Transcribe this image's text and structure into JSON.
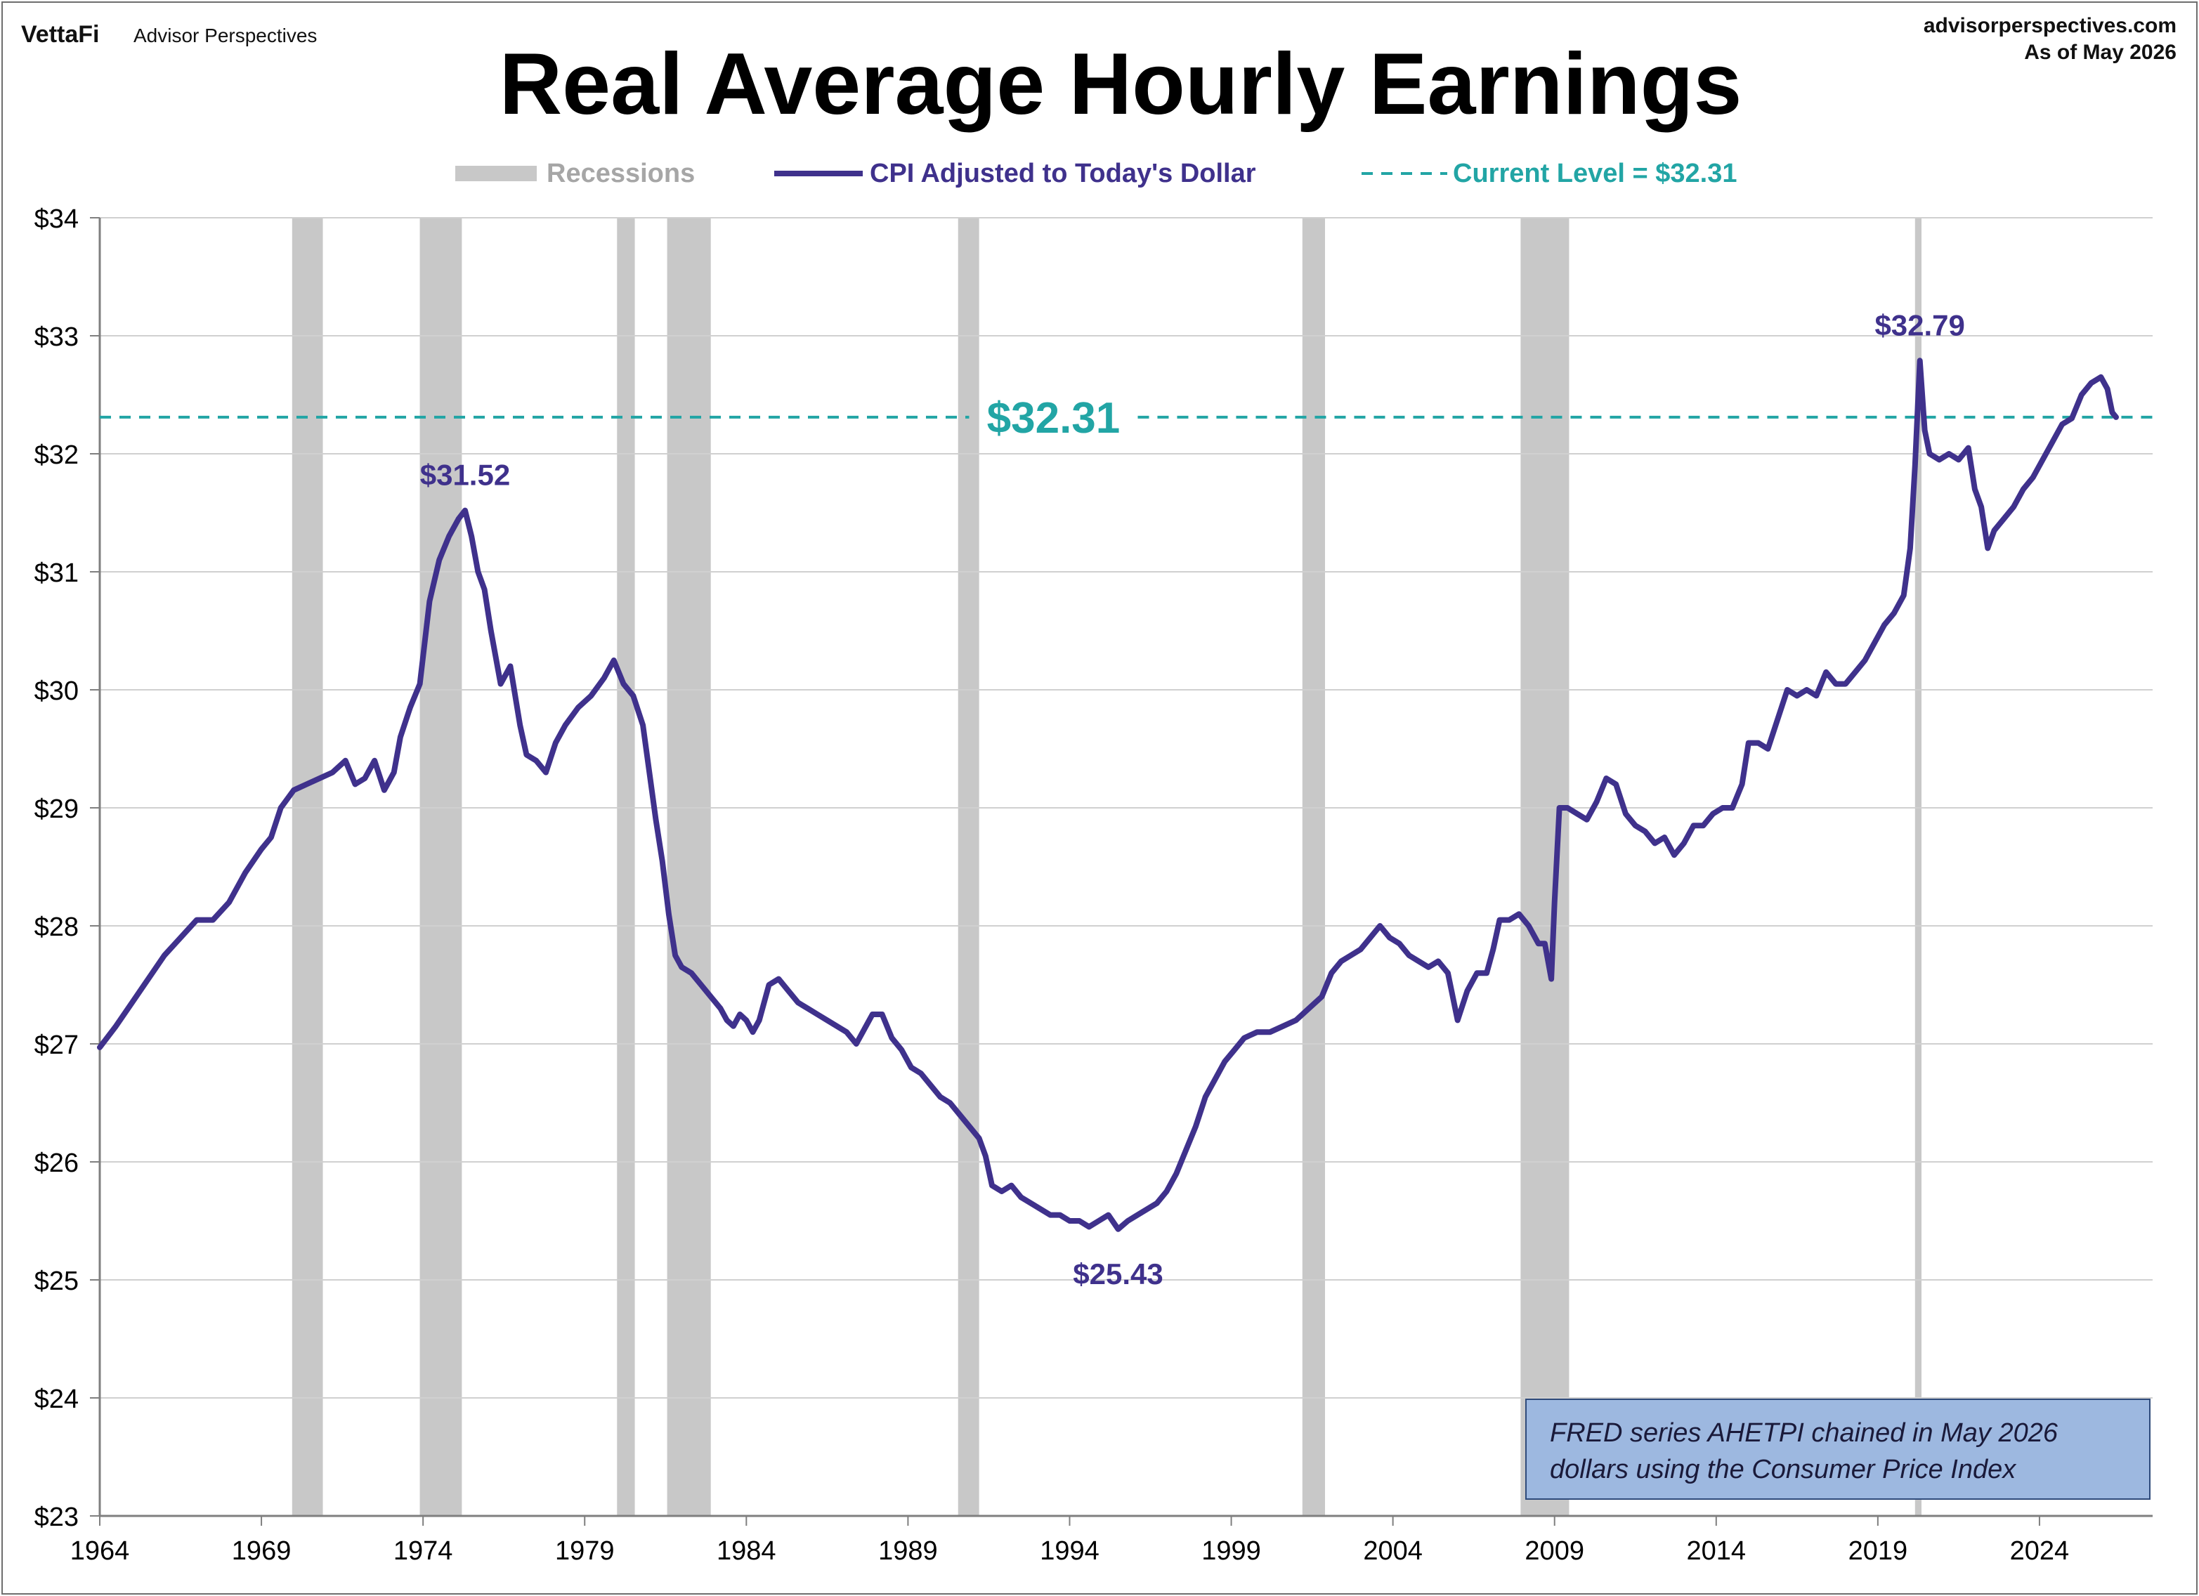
{
  "branding": {
    "logo_text": "VettaFi",
    "publisher": "Advisor Perspectives",
    "website": "advisorperspectives.com",
    "as_of": "As of May 2026"
  },
  "colors": {
    "line": "#3f318c",
    "current_level": "#22a5a5",
    "recession": "#c8c8c8",
    "grid": "#d0d0d0",
    "axis": "#7f7f7f",
    "note_fill": "#9db8e0",
    "note_border": "#2e4a7a"
  },
  "chart_data": {
    "type": "line",
    "title": "Real Average Hourly Earnings",
    "legend": [
      "Recessions",
      "CPI Adjusted to Today's Dollar",
      "Current Level = $32.31"
    ],
    "legend_position": "top",
    "grid": true,
    "x_range": [
      1964,
      2027.5
    ],
    "ylim": [
      23,
      34
    ],
    "xticks": [
      "1964",
      "1969",
      "1974",
      "1979",
      "1984",
      "1989",
      "1994",
      "1999",
      "2004",
      "2009",
      "2014",
      "2019",
      "2024"
    ],
    "yticks": [
      "$23",
      "$24",
      "$25",
      "$26",
      "$27",
      "$28",
      "$29",
      "$30",
      "$31",
      "$32",
      "$33",
      "$34"
    ],
    "recessions": [
      [
        1969.95,
        1970.9
      ],
      [
        1973.9,
        1975.2
      ],
      [
        1980.0,
        1980.55
      ],
      [
        1981.55,
        1982.9
      ],
      [
        1990.55,
        1991.2
      ],
      [
        2001.2,
        2001.9
      ],
      [
        2007.95,
        2009.45
      ],
      [
        2020.15,
        2020.35
      ]
    ],
    "current_level": {
      "value": 32.31,
      "label": "$32.31"
    },
    "series": [
      {
        "name": "CPI Adjusted to Today's Dollar",
        "points": [
          [
            1964.0,
            26.97
          ],
          [
            1964.5,
            27.15
          ],
          [
            1965.0,
            27.35
          ],
          [
            1965.5,
            27.55
          ],
          [
            1966.0,
            27.75
          ],
          [
            1966.5,
            27.9
          ],
          [
            1967.0,
            28.05
          ],
          [
            1967.5,
            28.05
          ],
          [
            1968.0,
            28.2
          ],
          [
            1968.5,
            28.45
          ],
          [
            1969.0,
            28.65
          ],
          [
            1969.3,
            28.75
          ],
          [
            1969.6,
            29.0
          ],
          [
            1970.0,
            29.15
          ],
          [
            1970.4,
            29.2
          ],
          [
            1970.8,
            29.25
          ],
          [
            1971.2,
            29.3
          ],
          [
            1971.6,
            29.4
          ],
          [
            1971.9,
            29.2
          ],
          [
            1972.2,
            29.25
          ],
          [
            1972.5,
            29.4
          ],
          [
            1972.8,
            29.15
          ],
          [
            1973.1,
            29.3
          ],
          [
            1973.3,
            29.6
          ],
          [
            1973.6,
            29.85
          ],
          [
            1973.9,
            30.05
          ],
          [
            1974.2,
            30.75
          ],
          [
            1974.5,
            31.1
          ],
          [
            1974.8,
            31.3
          ],
          [
            1975.1,
            31.45
          ],
          [
            1975.3,
            31.52
          ],
          [
            1975.5,
            31.3
          ],
          [
            1975.7,
            31.0
          ],
          [
            1975.9,
            30.85
          ],
          [
            1976.1,
            30.5
          ],
          [
            1976.4,
            30.05
          ],
          [
            1976.7,
            30.2
          ],
          [
            1977.0,
            29.7
          ],
          [
            1977.2,
            29.45
          ],
          [
            1977.5,
            29.4
          ],
          [
            1977.8,
            29.3
          ],
          [
            1978.1,
            29.55
          ],
          [
            1978.4,
            29.7
          ],
          [
            1978.8,
            29.85
          ],
          [
            1979.2,
            29.95
          ],
          [
            1979.6,
            30.1
          ],
          [
            1979.9,
            30.25
          ],
          [
            1980.2,
            30.05
          ],
          [
            1980.5,
            29.95
          ],
          [
            1980.8,
            29.7
          ],
          [
            1981.0,
            29.3
          ],
          [
            1981.2,
            28.9
          ],
          [
            1981.4,
            28.55
          ],
          [
            1981.6,
            28.1
          ],
          [
            1981.8,
            27.75
          ],
          [
            1982.0,
            27.65
          ],
          [
            1982.3,
            27.6
          ],
          [
            1982.6,
            27.5
          ],
          [
            1982.9,
            27.4
          ],
          [
            1983.2,
            27.3
          ],
          [
            1983.4,
            27.2
          ],
          [
            1983.6,
            27.15
          ],
          [
            1983.8,
            27.25
          ],
          [
            1984.0,
            27.2
          ],
          [
            1984.2,
            27.1
          ],
          [
            1984.4,
            27.2
          ],
          [
            1984.7,
            27.5
          ],
          [
            1985.0,
            27.55
          ],
          [
            1985.3,
            27.45
          ],
          [
            1985.6,
            27.35
          ],
          [
            1985.9,
            27.3
          ],
          [
            1986.2,
            27.25
          ],
          [
            1986.5,
            27.2
          ],
          [
            1986.8,
            27.15
          ],
          [
            1987.1,
            27.1
          ],
          [
            1987.4,
            27.0
          ],
          [
            1987.7,
            27.15
          ],
          [
            1987.9,
            27.25
          ],
          [
            1988.2,
            27.25
          ],
          [
            1988.5,
            27.05
          ],
          [
            1988.8,
            26.95
          ],
          [
            1989.1,
            26.8
          ],
          [
            1989.4,
            26.75
          ],
          [
            1989.7,
            26.65
          ],
          [
            1990.0,
            26.55
          ],
          [
            1990.3,
            26.5
          ],
          [
            1990.6,
            26.4
          ],
          [
            1990.9,
            26.3
          ],
          [
            1991.2,
            26.2
          ],
          [
            1991.4,
            26.05
          ],
          [
            1991.6,
            25.8
          ],
          [
            1991.9,
            25.75
          ],
          [
            1992.2,
            25.8
          ],
          [
            1992.5,
            25.7
          ],
          [
            1992.8,
            25.65
          ],
          [
            1993.1,
            25.6
          ],
          [
            1993.4,
            25.55
          ],
          [
            1993.7,
            25.55
          ],
          [
            1994.0,
            25.5
          ],
          [
            1994.3,
            25.5
          ],
          [
            1994.6,
            25.45
          ],
          [
            1994.9,
            25.5
          ],
          [
            1995.2,
            25.55
          ],
          [
            1995.5,
            25.43
          ],
          [
            1995.8,
            25.5
          ],
          [
            1996.1,
            25.55
          ],
          [
            1996.4,
            25.6
          ],
          [
            1996.7,
            25.65
          ],
          [
            1997.0,
            25.75
          ],
          [
            1997.3,
            25.9
          ],
          [
            1997.6,
            26.1
          ],
          [
            1997.9,
            26.3
          ],
          [
            1998.2,
            26.55
          ],
          [
            1998.5,
            26.7
          ],
          [
            1998.8,
            26.85
          ],
          [
            1999.1,
            26.95
          ],
          [
            1999.4,
            27.05
          ],
          [
            1999.8,
            27.1
          ],
          [
            2000.2,
            27.1
          ],
          [
            2000.6,
            27.15
          ],
          [
            2001.0,
            27.2
          ],
          [
            2001.4,
            27.3
          ],
          [
            2001.8,
            27.4
          ],
          [
            2002.1,
            27.6
          ],
          [
            2002.4,
            27.7
          ],
          [
            2002.7,
            27.75
          ],
          [
            2003.0,
            27.8
          ],
          [
            2003.3,
            27.9
          ],
          [
            2003.6,
            28.0
          ],
          [
            2003.9,
            27.9
          ],
          [
            2004.2,
            27.85
          ],
          [
            2004.5,
            27.75
          ],
          [
            2004.8,
            27.7
          ],
          [
            2005.1,
            27.65
          ],
          [
            2005.4,
            27.7
          ],
          [
            2005.7,
            27.6
          ],
          [
            2006.0,
            27.2
          ],
          [
            2006.3,
            27.45
          ],
          [
            2006.6,
            27.6
          ],
          [
            2006.9,
            27.6
          ],
          [
            2007.1,
            27.8
          ],
          [
            2007.3,
            28.05
          ],
          [
            2007.6,
            28.05
          ],
          [
            2007.9,
            28.1
          ],
          [
            2008.2,
            28.0
          ],
          [
            2008.5,
            27.85
          ],
          [
            2008.7,
            27.85
          ],
          [
            2008.9,
            27.55
          ],
          [
            2009.0,
            28.2
          ],
          [
            2009.15,
            29.0
          ],
          [
            2009.4,
            29.0
          ],
          [
            2009.7,
            28.95
          ],
          [
            2010.0,
            28.9
          ],
          [
            2010.3,
            29.05
          ],
          [
            2010.6,
            29.25
          ],
          [
            2010.9,
            29.2
          ],
          [
            2011.2,
            28.95
          ],
          [
            2011.5,
            28.85
          ],
          [
            2011.8,
            28.8
          ],
          [
            2012.1,
            28.7
          ],
          [
            2012.4,
            28.75
          ],
          [
            2012.7,
            28.6
          ],
          [
            2013.0,
            28.7
          ],
          [
            2013.3,
            28.85
          ],
          [
            2013.6,
            28.85
          ],
          [
            2013.9,
            28.95
          ],
          [
            2014.2,
            29.0
          ],
          [
            2014.5,
            29.0
          ],
          [
            2014.8,
            29.2
          ],
          [
            2015.0,
            29.55
          ],
          [
            2015.3,
            29.55
          ],
          [
            2015.6,
            29.5
          ],
          [
            2015.9,
            29.75
          ],
          [
            2016.2,
            30.0
          ],
          [
            2016.5,
            29.95
          ],
          [
            2016.8,
            30.0
          ],
          [
            2017.1,
            29.95
          ],
          [
            2017.4,
            30.15
          ],
          [
            2017.7,
            30.05
          ],
          [
            2018.0,
            30.05
          ],
          [
            2018.3,
            30.15
          ],
          [
            2018.6,
            30.25
          ],
          [
            2018.9,
            30.4
          ],
          [
            2019.2,
            30.55
          ],
          [
            2019.5,
            30.65
          ],
          [
            2019.8,
            30.8
          ],
          [
            2020.0,
            31.2
          ],
          [
            2020.15,
            31.9
          ],
          [
            2020.3,
            32.79
          ],
          [
            2020.45,
            32.2
          ],
          [
            2020.6,
            32.0
          ],
          [
            2020.9,
            31.95
          ],
          [
            2021.2,
            32.0
          ],
          [
            2021.5,
            31.95
          ],
          [
            2021.8,
            32.05
          ],
          [
            2022.0,
            31.7
          ],
          [
            2022.2,
            31.55
          ],
          [
            2022.4,
            31.2
          ],
          [
            2022.6,
            31.35
          ],
          [
            2022.9,
            31.45
          ],
          [
            2023.2,
            31.55
          ],
          [
            2023.5,
            31.7
          ],
          [
            2023.8,
            31.8
          ],
          [
            2024.1,
            31.95
          ],
          [
            2024.4,
            32.1
          ],
          [
            2024.7,
            32.25
          ],
          [
            2025.0,
            32.3
          ],
          [
            2025.3,
            32.5
          ],
          [
            2025.6,
            32.6
          ],
          [
            2025.9,
            32.65
          ],
          [
            2026.1,
            32.55
          ],
          [
            2026.25,
            32.35
          ],
          [
            2026.37,
            32.31
          ]
        ]
      }
    ],
    "annotations": [
      {
        "text": "$31.52",
        "x": 1975.3,
        "y": 31.52
      },
      {
        "text": "$25.43",
        "x": 1995.5,
        "y": 25.43
      },
      {
        "text": "$32.79",
        "x": 2020.3,
        "y": 32.79
      }
    ],
    "note": [
      "FRED series AHETPI chained in May 2026",
      "dollars using the Consumer Price Index"
    ]
  }
}
